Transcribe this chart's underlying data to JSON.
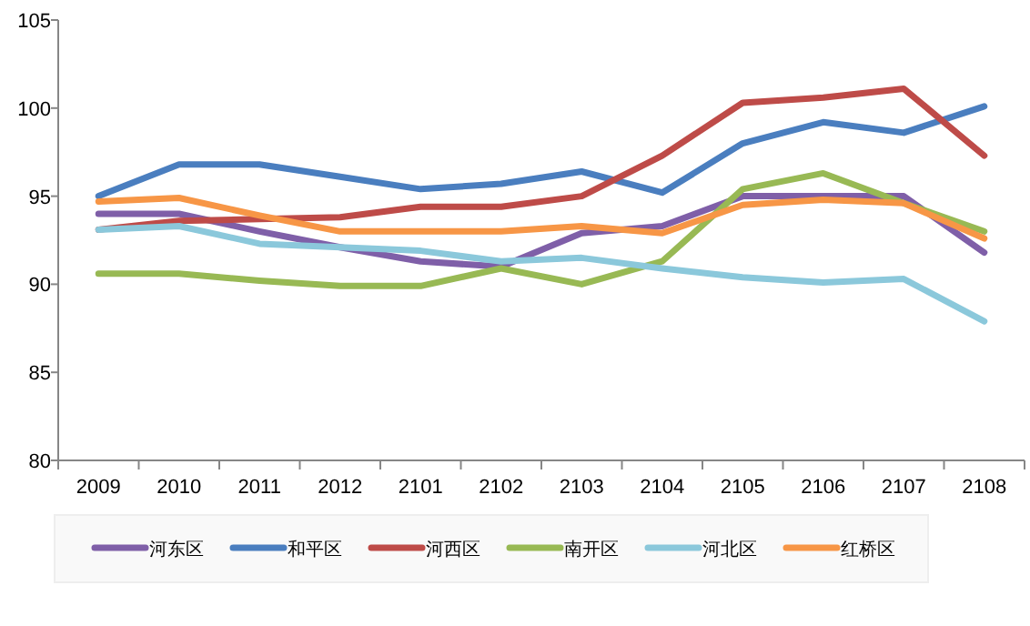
{
  "chart_data": {
    "type": "line",
    "categories": [
      "2009",
      "2010",
      "2011",
      "2012",
      "2101",
      "2102",
      "2103",
      "2104",
      "2105",
      "2106",
      "2107",
      "2108"
    ],
    "ylim": [
      80,
      105
    ],
    "yticks": [
      80,
      85,
      90,
      95,
      100,
      105
    ],
    "grid": false,
    "legend": "bottom",
    "marker": "none",
    "line_style": "solid",
    "series": [
      {
        "name": "河东区",
        "color": "#7f5fa8",
        "values": [
          94.0,
          94.0,
          93.0,
          92.1,
          91.3,
          91.0,
          92.9,
          93.3,
          95.0,
          95.0,
          95.0,
          91.8
        ]
      },
      {
        "name": "和平区",
        "color": "#4a7ebf",
        "values": [
          95.0,
          96.8,
          96.8,
          96.1,
          95.4,
          95.7,
          96.4,
          95.2,
          98.0,
          99.2,
          98.6,
          100.1
        ]
      },
      {
        "name": "河西区",
        "color": "#be4b48",
        "values": [
          93.1,
          93.6,
          93.7,
          93.8,
          94.4,
          94.4,
          95.0,
          97.3,
          100.3,
          100.6,
          101.1,
          97.3
        ]
      },
      {
        "name": "南开区",
        "color": "#98b954",
        "values": [
          90.6,
          90.6,
          90.2,
          89.9,
          89.9,
          90.9,
          90.0,
          91.3,
          95.4,
          96.3,
          94.6,
          93.0
        ]
      },
      {
        "name": "河北区",
        "color": "#8bc8db",
        "values": [
          93.1,
          93.3,
          92.3,
          92.1,
          91.9,
          91.3,
          91.5,
          90.9,
          90.4,
          90.1,
          90.3,
          87.9
        ]
      },
      {
        "name": "红桥区",
        "color": "#f79646",
        "values": [
          94.7,
          94.9,
          93.9,
          93.0,
          93.0,
          93.0,
          93.3,
          92.9,
          94.5,
          94.8,
          94.6,
          92.6
        ]
      }
    ]
  }
}
